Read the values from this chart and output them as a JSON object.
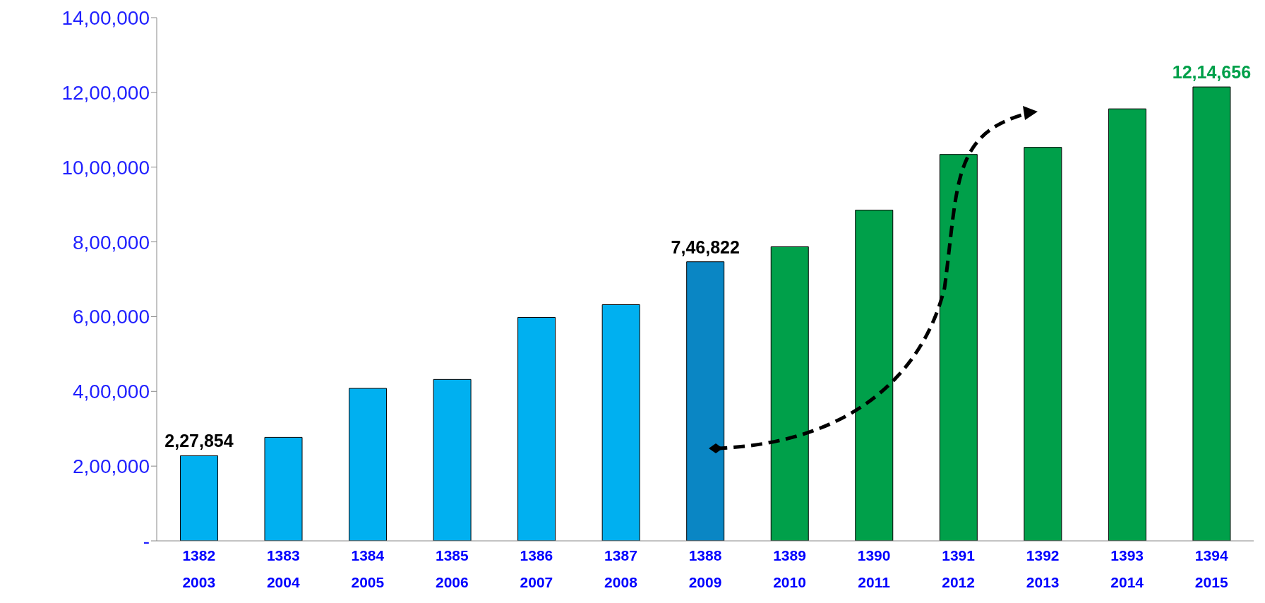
{
  "chart_data": {
    "type": "bar",
    "categories": [
      "1382\n2003",
      "1383\n2004",
      "1384\n2005",
      "1385\n2006",
      "1386\n2007",
      "1387\n2008",
      "1388\n2009",
      "1389\n2010",
      "1390\n2011",
      "1391\n2012",
      "1392\n2013",
      "1393\n2014",
      "1394\n2015"
    ],
    "values": [
      227854,
      277000,
      408000,
      432000,
      598000,
      632000,
      746822,
      787000,
      885000,
      1034000,
      1053000,
      1156000,
      1214656
    ],
    "colors": [
      "#00b0f0",
      "#00b0f0",
      "#00b0f0",
      "#00b0f0",
      "#00b0f0",
      "#00b0f0",
      "#0a86c4",
      "#00a04a",
      "#00a04a",
      "#00a04a",
      "#00a04a",
      "#00a04a",
      "#00a04a"
    ],
    "value_labels": [
      "2,27,854",
      null,
      null,
      null,
      null,
      null,
      "7,46,822",
      null,
      null,
      null,
      null,
      null,
      "12,14,656"
    ],
    "ylim": [
      0,
      1400000
    ],
    "yticks": [
      {
        "value": 0,
        "label": "-"
      },
      {
        "value": 200000,
        "label": "2,00,000"
      },
      {
        "value": 400000,
        "label": "4,00,000"
      },
      {
        "value": 600000,
        "label": "6,00,000"
      },
      {
        "value": 800000,
        "label": "8,00,000"
      },
      {
        "value": 1000000,
        "label": "10,00,000"
      },
      {
        "value": 1200000,
        "label": "12,00,000"
      },
      {
        "value": 1400000,
        "label": "14,00,000"
      }
    ],
    "grid": false
  }
}
